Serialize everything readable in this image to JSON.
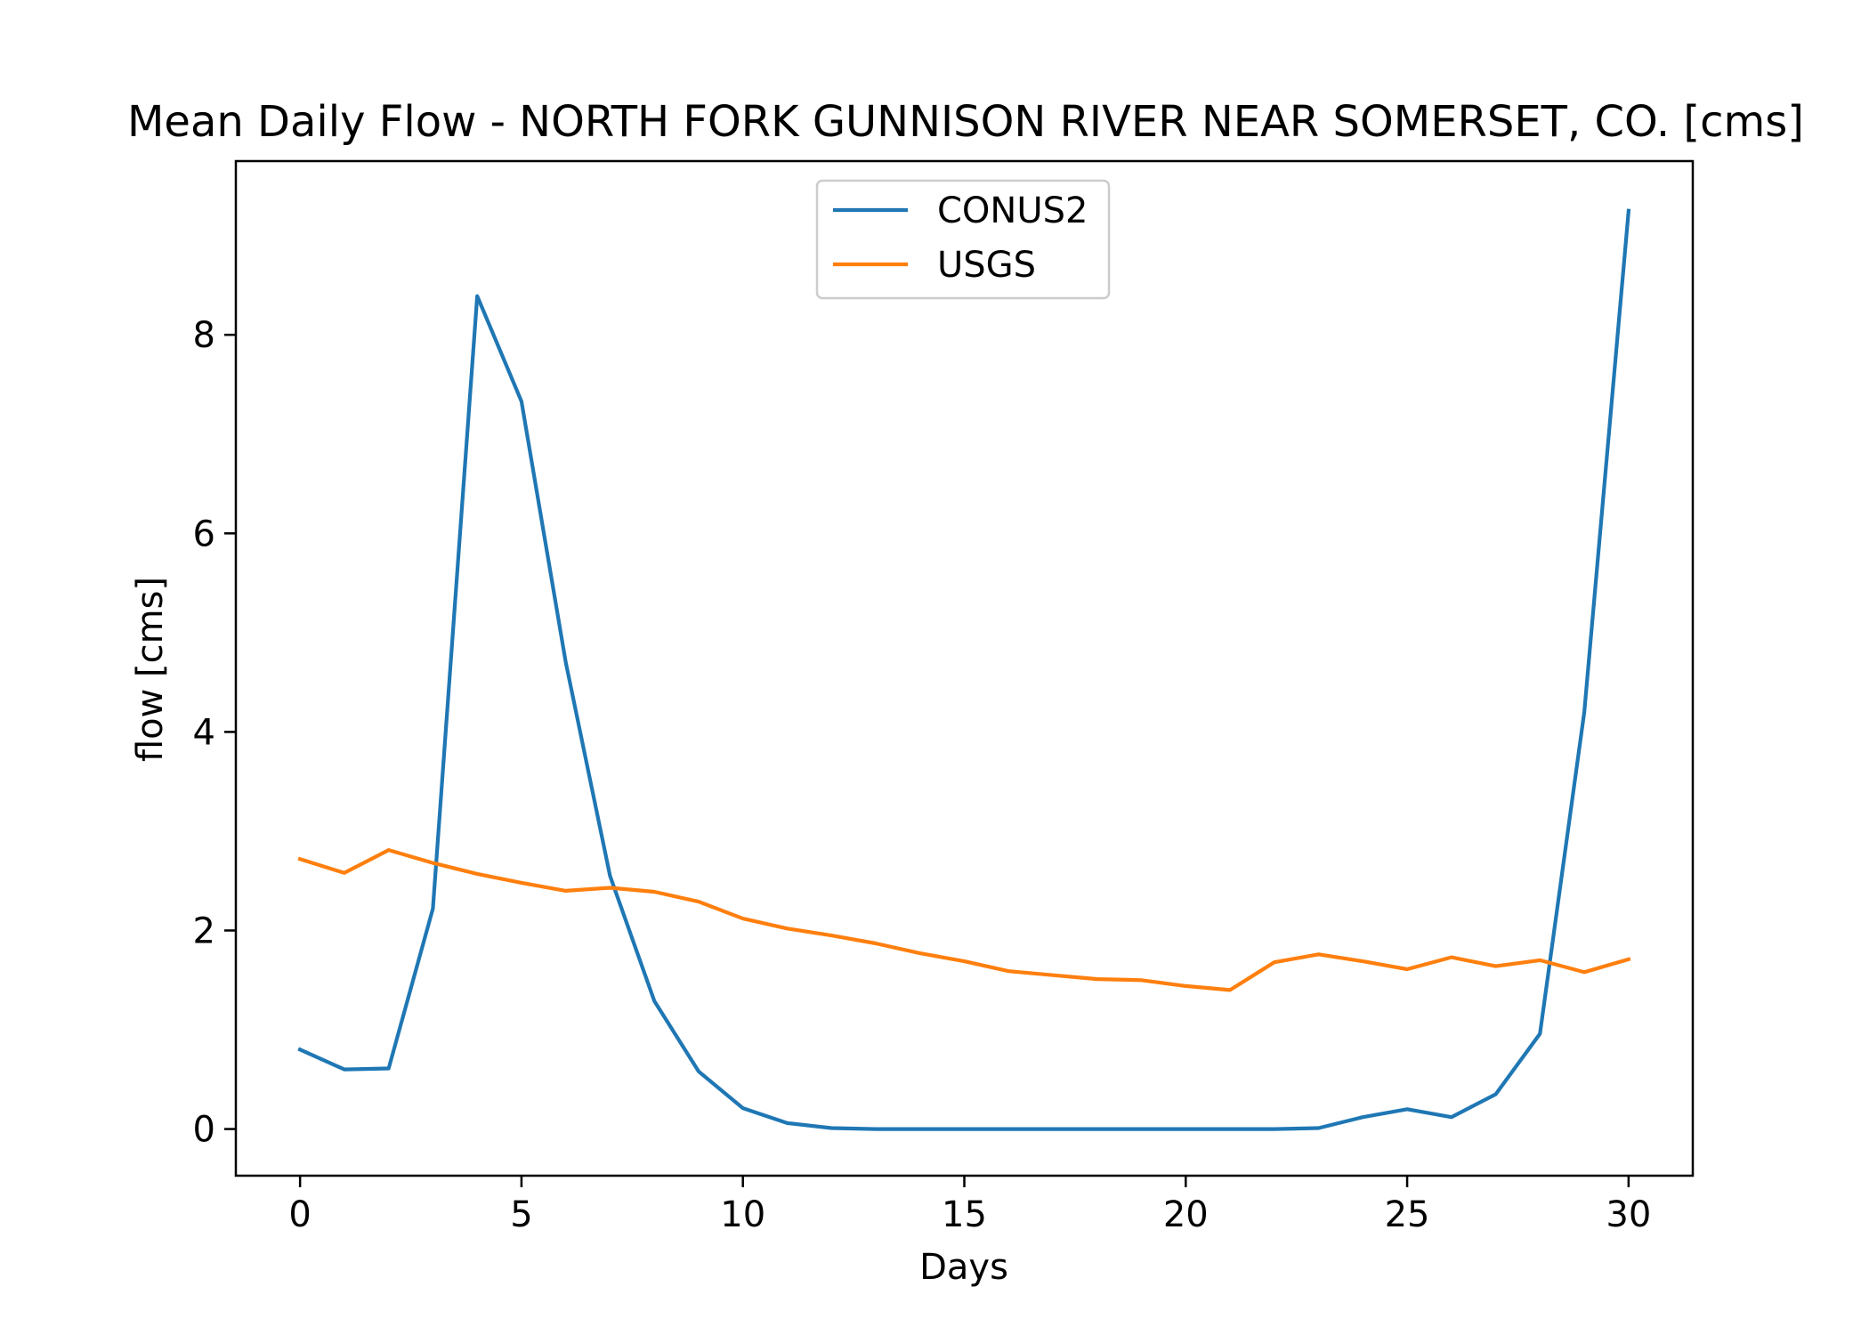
{
  "chart_data": {
    "type": "line",
    "title": "Mean Daily Flow - NORTH FORK GUNNISON RIVER NEAR SOMERSET, CO. [cms]",
    "xlabel": "Days",
    "ylabel": "flow [cms]",
    "xlim": [
      -1.45,
      31.45
    ],
    "ylim": [
      -0.47,
      9.75
    ],
    "x_ticks": [
      0,
      5,
      10,
      15,
      20,
      25,
      30
    ],
    "y_ticks": [
      0,
      2,
      4,
      6,
      8
    ],
    "grid": false,
    "legend_position": "upper center",
    "x": [
      0,
      1,
      2,
      3,
      4,
      5,
      6,
      7,
      8,
      9,
      10,
      11,
      12,
      13,
      14,
      15,
      16,
      17,
      18,
      19,
      20,
      21,
      22,
      23,
      24,
      25,
      26,
      27,
      28,
      29,
      30
    ],
    "series": [
      {
        "name": "CONUS2",
        "color": "#1f77b4",
        "values": [
          0.8,
          0.6,
          0.61,
          2.22,
          8.39,
          7.33,
          4.7,
          2.55,
          1.29,
          0.58,
          0.21,
          0.06,
          0.01,
          0.0,
          0.0,
          0.0,
          0.0,
          0.0,
          0.0,
          0.0,
          0.0,
          0.0,
          0.0,
          0.01,
          0.12,
          0.2,
          0.12,
          0.35,
          0.96,
          4.2,
          9.25
        ]
      },
      {
        "name": "USGS",
        "color": "#ff7f0e",
        "values": [
          2.72,
          2.58,
          2.81,
          2.68,
          2.57,
          2.48,
          2.4,
          2.43,
          2.39,
          2.29,
          2.12,
          2.02,
          1.95,
          1.87,
          1.77,
          1.69,
          1.59,
          1.55,
          1.51,
          1.5,
          1.44,
          1.4,
          1.68,
          1.76,
          1.69,
          1.61,
          1.73,
          1.64,
          1.7,
          1.58,
          1.71
        ]
      }
    ]
  }
}
